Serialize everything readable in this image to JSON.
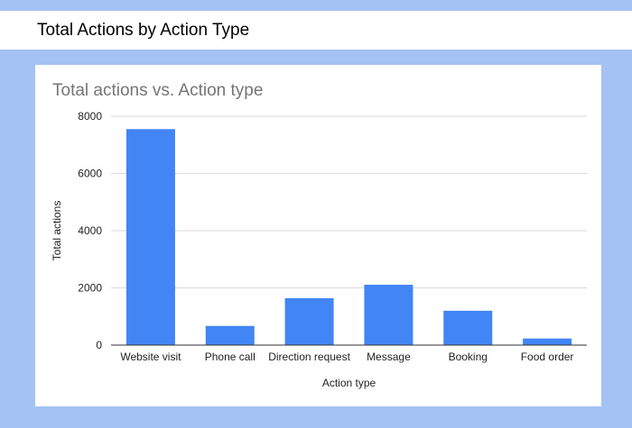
{
  "header": {
    "title": "Total Actions by Action Type"
  },
  "colors": {
    "bar": "#4285f4",
    "page_background": "#a4c2f4",
    "gridline": "#d9d9d9"
  },
  "chart_data": {
    "type": "bar",
    "title": "Total actions vs. Action type",
    "xlabel": "Action type",
    "ylabel": "Total actions",
    "categories": [
      "Website visit",
      "Phone call",
      "Direction request",
      "Message",
      "Booking",
      "Food order"
    ],
    "values": [
      7550,
      670,
      1640,
      2110,
      1200,
      230
    ],
    "ylim": [
      0,
      8000
    ],
    "yticks": [
      0,
      2000,
      4000,
      6000,
      8000
    ],
    "grid": true,
    "legend": "none"
  }
}
